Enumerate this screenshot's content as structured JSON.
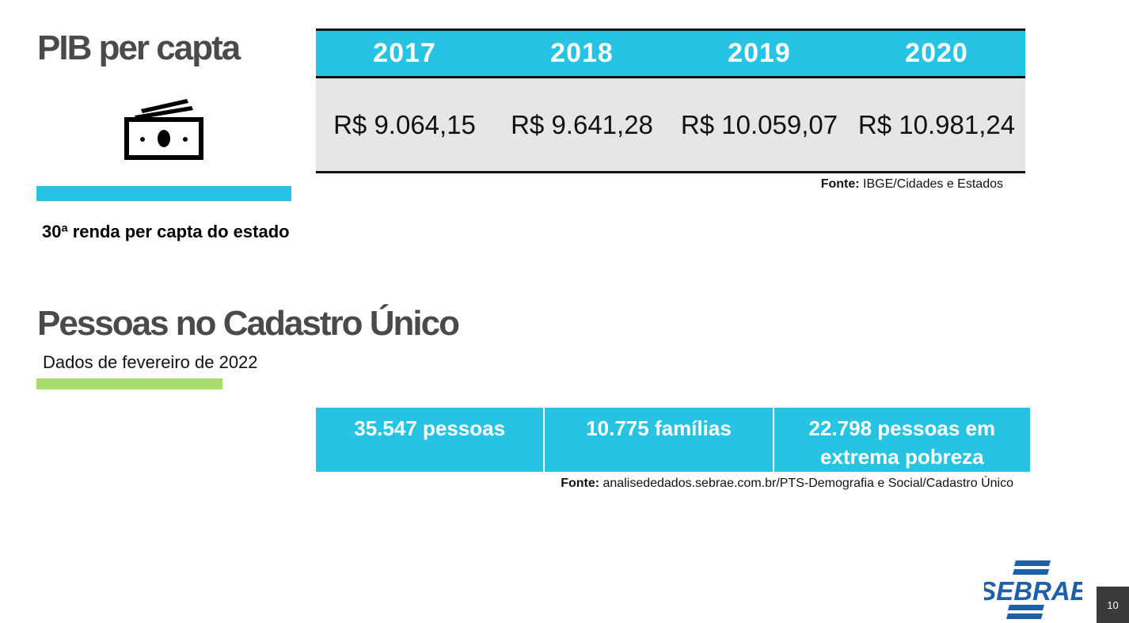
{
  "pib": {
    "title": "PIB per capta",
    "icon": "money-icon",
    "rank_text": "30ª renda per capta do estado",
    "table": {
      "headers": [
        "2017",
        "2018",
        "2019",
        "2020"
      ],
      "values": [
        "R$ 9.064,15",
        "R$ 9.641,28",
        "R$ 10.059,07",
        "R$ 10.981,24"
      ]
    },
    "source_label": "Fonte:",
    "source_text": " IBGE/Cidades e Estados"
  },
  "cadastro": {
    "title": "Pessoas no Cadastro Único",
    "subtitle": "Dados de fevereiro de 2022",
    "cells": [
      "35.547 pessoas",
      "10.775 famílias",
      "22.798 pessoas em extrema pobreza"
    ],
    "source_label": "Fonte:",
    "source_text": " analisededados.sebrae.com.br/PTS-Demografia e Social/Cadastro Único"
  },
  "footer": {
    "logo_text": "SEBRAE",
    "page_number": "10"
  },
  "colors": {
    "accent_blue": "#26c3e3",
    "accent_green": "#a6dc6a",
    "title_gray": "#4a4a4a",
    "logo_blue": "#1f5fa8"
  }
}
